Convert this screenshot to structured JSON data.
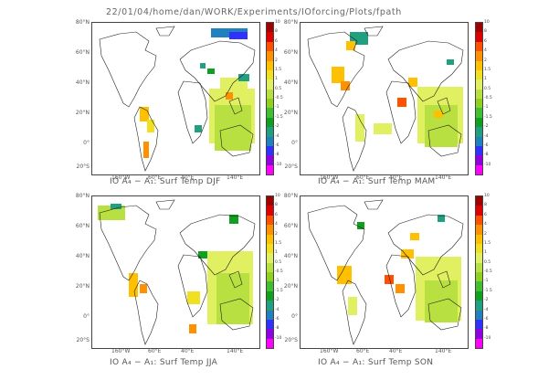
{
  "header": {
    "path": "22/01/04/home/dan/WORK/Experiments/IOforcing/Plots/fpath"
  },
  "colors": {
    "scale": [
      "#ff00ff",
      "#9000e0",
      "#3030ff",
      "#2080c0",
      "#20a080",
      "#10a020",
      "#40c030",
      "#90d020",
      "#b8e040",
      "#e0f060",
      "#f0e020",
      "#ffc000",
      "#ff9000",
      "#ff5000",
      "#e00000",
      "#a00000"
    ],
    "coast": "#222222",
    "frame": "#444444"
  },
  "colorbar": {
    "ticks": [
      "10",
      "8",
      "6",
      "4",
      "2",
      "1.5",
      "1",
      "0.5",
      "-0.5",
      "-1",
      "-1.5",
      "-2",
      "-4",
      "-6",
      "-8",
      "-10"
    ]
  },
  "axes": {
    "lat_labels": [
      "80°N",
      "60°N",
      "40°N",
      "20°N",
      "0°",
      "20°S"
    ],
    "lon_labels": [
      "160°W",
      "60°E",
      "40°E",
      "140°E"
    ]
  },
  "panels": [
    {
      "id": "djf",
      "title": "IO A₄ − A₁: Surf Temp DJF",
      "show_lon_labels": true,
      "lon_labels": [
        "160°W",
        "60°E",
        "40°E",
        "140°E"
      ]
    },
    {
      "id": "mam",
      "title": "IO A₄ − A₁: Surf Temp MAM",
      "show_lon_labels": true,
      "lon_labels": [
        "160°W",
        "60°E",
        "40°E",
        "140°E"
      ]
    },
    {
      "id": "jja",
      "title": "IO A₄ − A₁: Surf Temp JJA",
      "show_lon_labels": true,
      "lon_labels": [
        "160°W",
        "60°E",
        "40°E",
        "140°E"
      ]
    },
    {
      "id": "son",
      "title": "IO A₄ − A₁: Surf Temp SON",
      "show_lon_labels": true,
      "lon_labels": [
        "160°W",
        "60°E",
        "40°E",
        "140°E"
      ]
    }
  ]
}
